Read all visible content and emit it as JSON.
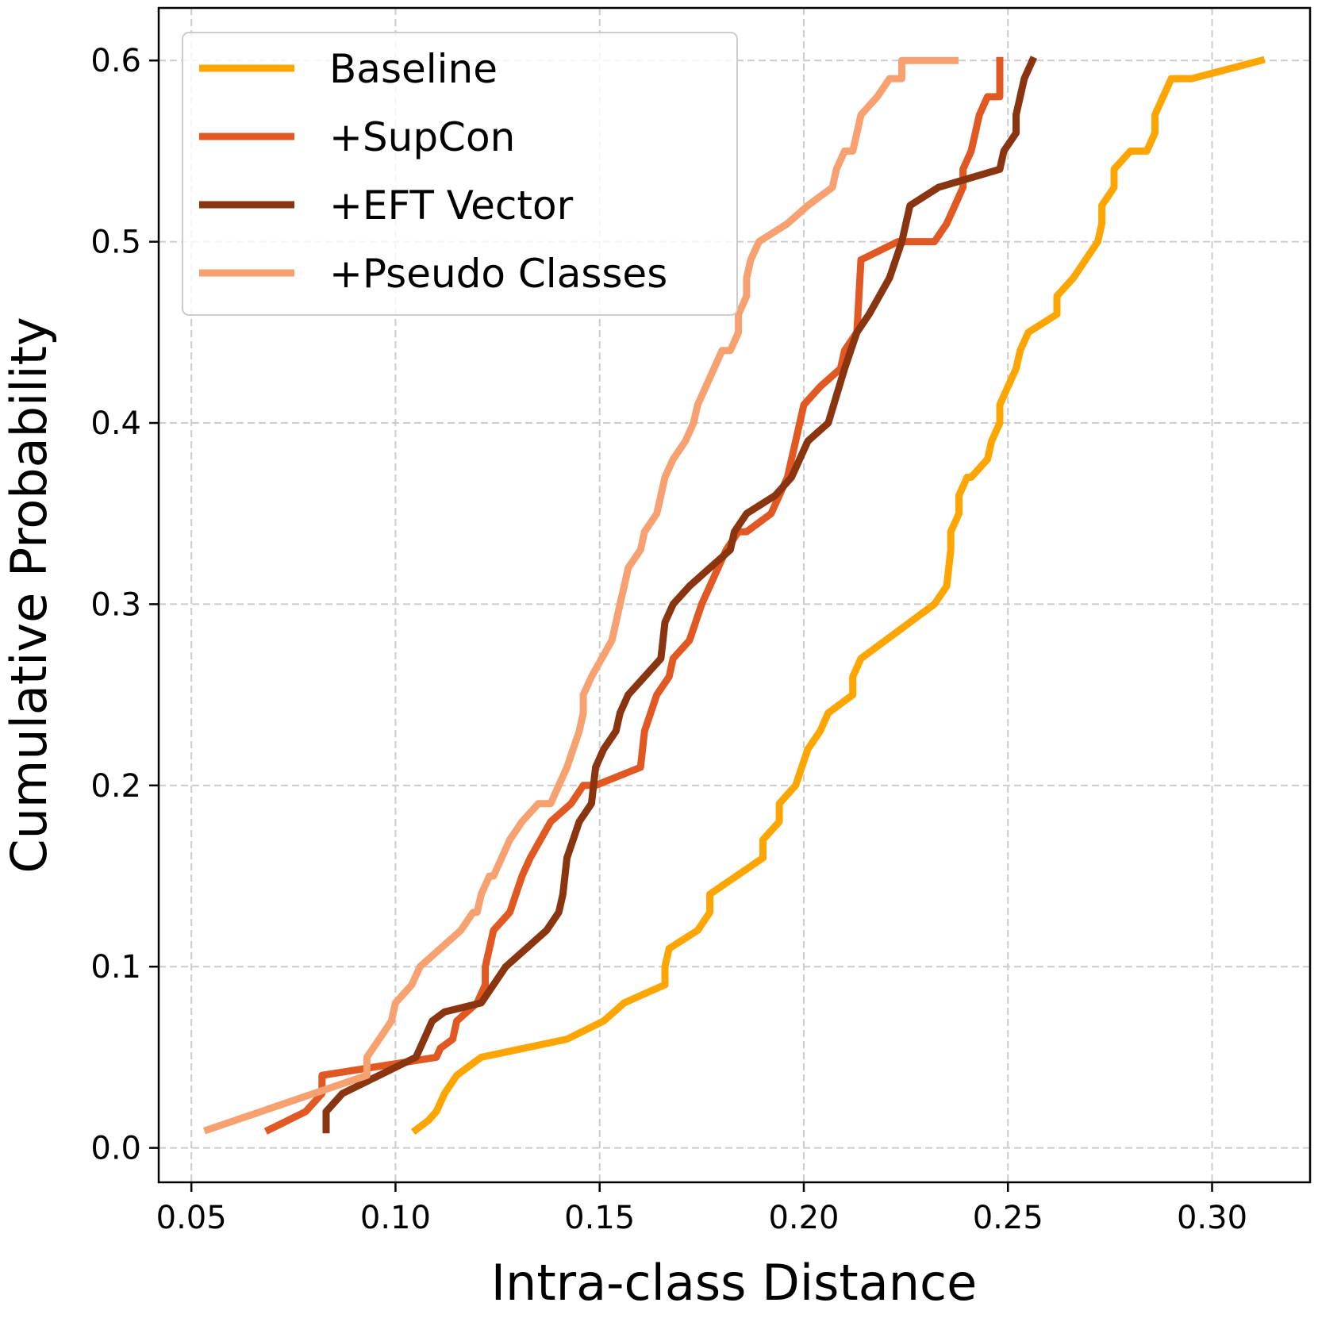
{
  "chart_data": {
    "type": "line",
    "title": "",
    "xlabel": "Intra-class Distance",
    "ylabel": "Cumulative Probability",
    "xlim": [
      0.042,
      0.324
    ],
    "ylim": [
      -0.019,
      0.629
    ],
    "xticks": [
      0.05,
      0.1,
      0.15,
      0.2,
      0.25,
      0.3
    ],
    "xtick_labels": [
      "0.05",
      "0.10",
      "0.15",
      "0.20",
      "0.25",
      "0.30"
    ],
    "yticks": [
      0.0,
      0.1,
      0.2,
      0.3,
      0.4,
      0.5,
      0.6
    ],
    "ytick_labels": [
      "0.0",
      "0.1",
      "0.2",
      "0.3",
      "0.4",
      "0.5",
      "0.6"
    ],
    "grid": true,
    "legend_position": "upper-left",
    "series": [
      {
        "name": "Baseline",
        "color": "#FFA500",
        "x": [
          0.105,
          0.108,
          0.11,
          0.112,
          0.115,
          0.118,
          0.121,
          0.142,
          0.151,
          0.156,
          0.166,
          0.166,
          0.167,
          0.174,
          0.177,
          0.177,
          0.19,
          0.19,
          0.194,
          0.194,
          0.198,
          0.201,
          0.204,
          0.206,
          0.212,
          0.212,
          0.214,
          0.214,
          0.226,
          0.232,
          0.235,
          0.236,
          0.236,
          0.238,
          0.238,
          0.24,
          0.241,
          0.245,
          0.246,
          0.248,
          0.248,
          0.25,
          0.252,
          0.253,
          0.255,
          0.262,
          0.262,
          0.266,
          0.269,
          0.272,
          0.273,
          0.273,
          0.276,
          0.276,
          0.28,
          0.284,
          0.286,
          0.286,
          0.288,
          0.29,
          0.295,
          0.312
        ],
        "y": [
          0.01,
          0.015,
          0.02,
          0.03,
          0.04,
          0.045,
          0.05,
          0.06,
          0.07,
          0.08,
          0.09,
          0.1,
          0.11,
          0.12,
          0.13,
          0.14,
          0.16,
          0.17,
          0.18,
          0.19,
          0.2,
          0.22,
          0.23,
          0.24,
          0.25,
          0.26,
          0.27,
          0.27,
          0.29,
          0.3,
          0.31,
          0.33,
          0.34,
          0.35,
          0.36,
          0.37,
          0.37,
          0.38,
          0.39,
          0.4,
          0.41,
          0.42,
          0.43,
          0.44,
          0.45,
          0.46,
          0.47,
          0.48,
          0.49,
          0.5,
          0.51,
          0.52,
          0.53,
          0.54,
          0.55,
          0.55,
          0.56,
          0.57,
          0.58,
          0.59,
          0.59,
          0.6
        ]
      },
      {
        "name": "+SupCon",
        "color": "#E25822",
        "x": [
          0.069,
          0.078,
          0.082,
          0.082,
          0.11,
          0.111,
          0.114,
          0.115,
          0.12,
          0.122,
          0.122,
          0.124,
          0.128,
          0.131,
          0.133,
          0.138,
          0.143,
          0.146,
          0.149,
          0.16,
          0.161,
          0.164,
          0.167,
          0.168,
          0.172,
          0.175,
          0.177,
          0.181,
          0.184,
          0.186,
          0.192,
          0.194,
          0.196,
          0.197,
          0.198,
          0.2,
          0.204,
          0.209,
          0.21,
          0.213,
          0.214,
          0.223,
          0.232,
          0.235,
          0.237,
          0.239,
          0.239,
          0.241,
          0.242,
          0.243,
          0.245,
          0.248,
          0.248
        ],
        "y": [
          0.01,
          0.02,
          0.03,
          0.04,
          0.05,
          0.055,
          0.06,
          0.07,
          0.08,
          0.09,
          0.1,
          0.12,
          0.13,
          0.15,
          0.16,
          0.18,
          0.19,
          0.2,
          0.2,
          0.21,
          0.23,
          0.25,
          0.26,
          0.27,
          0.28,
          0.3,
          0.31,
          0.33,
          0.34,
          0.34,
          0.35,
          0.36,
          0.37,
          0.38,
          0.39,
          0.41,
          0.42,
          0.43,
          0.44,
          0.45,
          0.49,
          0.5,
          0.5,
          0.51,
          0.52,
          0.53,
          0.54,
          0.55,
          0.56,
          0.57,
          0.58,
          0.58,
          0.6
        ]
      },
      {
        "name": "+EFT Vector",
        "color": "#8B3410",
        "x": [
          0.083,
          0.083,
          0.087,
          0.096,
          0.105,
          0.107,
          0.109,
          0.112,
          0.121,
          0.127,
          0.132,
          0.137,
          0.14,
          0.141,
          0.142,
          0.145,
          0.148,
          0.149,
          0.151,
          0.154,
          0.155,
          0.157,
          0.161,
          0.165,
          0.166,
          0.168,
          0.172,
          0.177,
          0.182,
          0.183,
          0.186,
          0.193,
          0.197,
          0.201,
          0.206,
          0.21,
          0.213,
          0.216,
          0.221,
          0.224,
          0.226,
          0.233,
          0.248,
          0.249,
          0.252,
          0.252,
          0.253,
          0.254,
          0.256
        ],
        "y": [
          0.01,
          0.02,
          0.03,
          0.04,
          0.05,
          0.06,
          0.07,
          0.075,
          0.08,
          0.1,
          0.11,
          0.12,
          0.13,
          0.14,
          0.16,
          0.18,
          0.19,
          0.21,
          0.22,
          0.23,
          0.24,
          0.25,
          0.26,
          0.27,
          0.29,
          0.3,
          0.31,
          0.32,
          0.33,
          0.34,
          0.35,
          0.36,
          0.37,
          0.39,
          0.4,
          0.43,
          0.45,
          0.46,
          0.48,
          0.5,
          0.52,
          0.53,
          0.54,
          0.55,
          0.56,
          0.57,
          0.58,
          0.59,
          0.6
        ]
      },
      {
        "name": "+Pseudo Classes",
        "color": "#F7A070",
        "x": [
          0.054,
          0.093,
          0.093,
          0.096,
          0.099,
          0.1,
          0.104,
          0.104,
          0.106,
          0.111,
          0.116,
          0.119,
          0.12,
          0.121,
          0.123,
          0.124,
          0.126,
          0.128,
          0.131,
          0.135,
          0.138,
          0.14,
          0.142,
          0.145,
          0.146,
          0.146,
          0.148,
          0.153,
          0.155,
          0.156,
          0.157,
          0.16,
          0.161,
          0.164,
          0.165,
          0.166,
          0.168,
          0.171,
          0.173,
          0.174,
          0.176,
          0.178,
          0.18,
          0.182,
          0.184,
          0.184,
          0.186,
          0.186,
          0.187,
          0.189,
          0.189,
          0.196,
          0.201,
          0.207,
          0.208,
          0.21,
          0.212,
          0.213,
          0.214,
          0.218,
          0.221,
          0.221,
          0.224,
          0.224,
          0.228,
          0.23,
          0.233,
          0.233,
          0.234,
          0.236,
          0.237
        ],
        "y": [
          0.01,
          0.04,
          0.05,
          0.06,
          0.07,
          0.08,
          0.09,
          0.09,
          0.1,
          0.11,
          0.12,
          0.13,
          0.13,
          0.14,
          0.15,
          0.15,
          0.16,
          0.17,
          0.18,
          0.19,
          0.19,
          0.2,
          0.21,
          0.23,
          0.24,
          0.25,
          0.26,
          0.28,
          0.3,
          0.31,
          0.32,
          0.33,
          0.34,
          0.35,
          0.36,
          0.37,
          0.38,
          0.39,
          0.4,
          0.41,
          0.42,
          0.43,
          0.44,
          0.44,
          0.45,
          0.46,
          0.47,
          0.48,
          0.49,
          0.5,
          0.5,
          0.51,
          0.52,
          0.53,
          0.54,
          0.55,
          0.55,
          0.56,
          0.57,
          0.58,
          0.59,
          0.59,
          0.59,
          0.6,
          0.6,
          0.6,
          0.6,
          0.6,
          0.6,
          0.6,
          0.6
        ]
      }
    ]
  }
}
